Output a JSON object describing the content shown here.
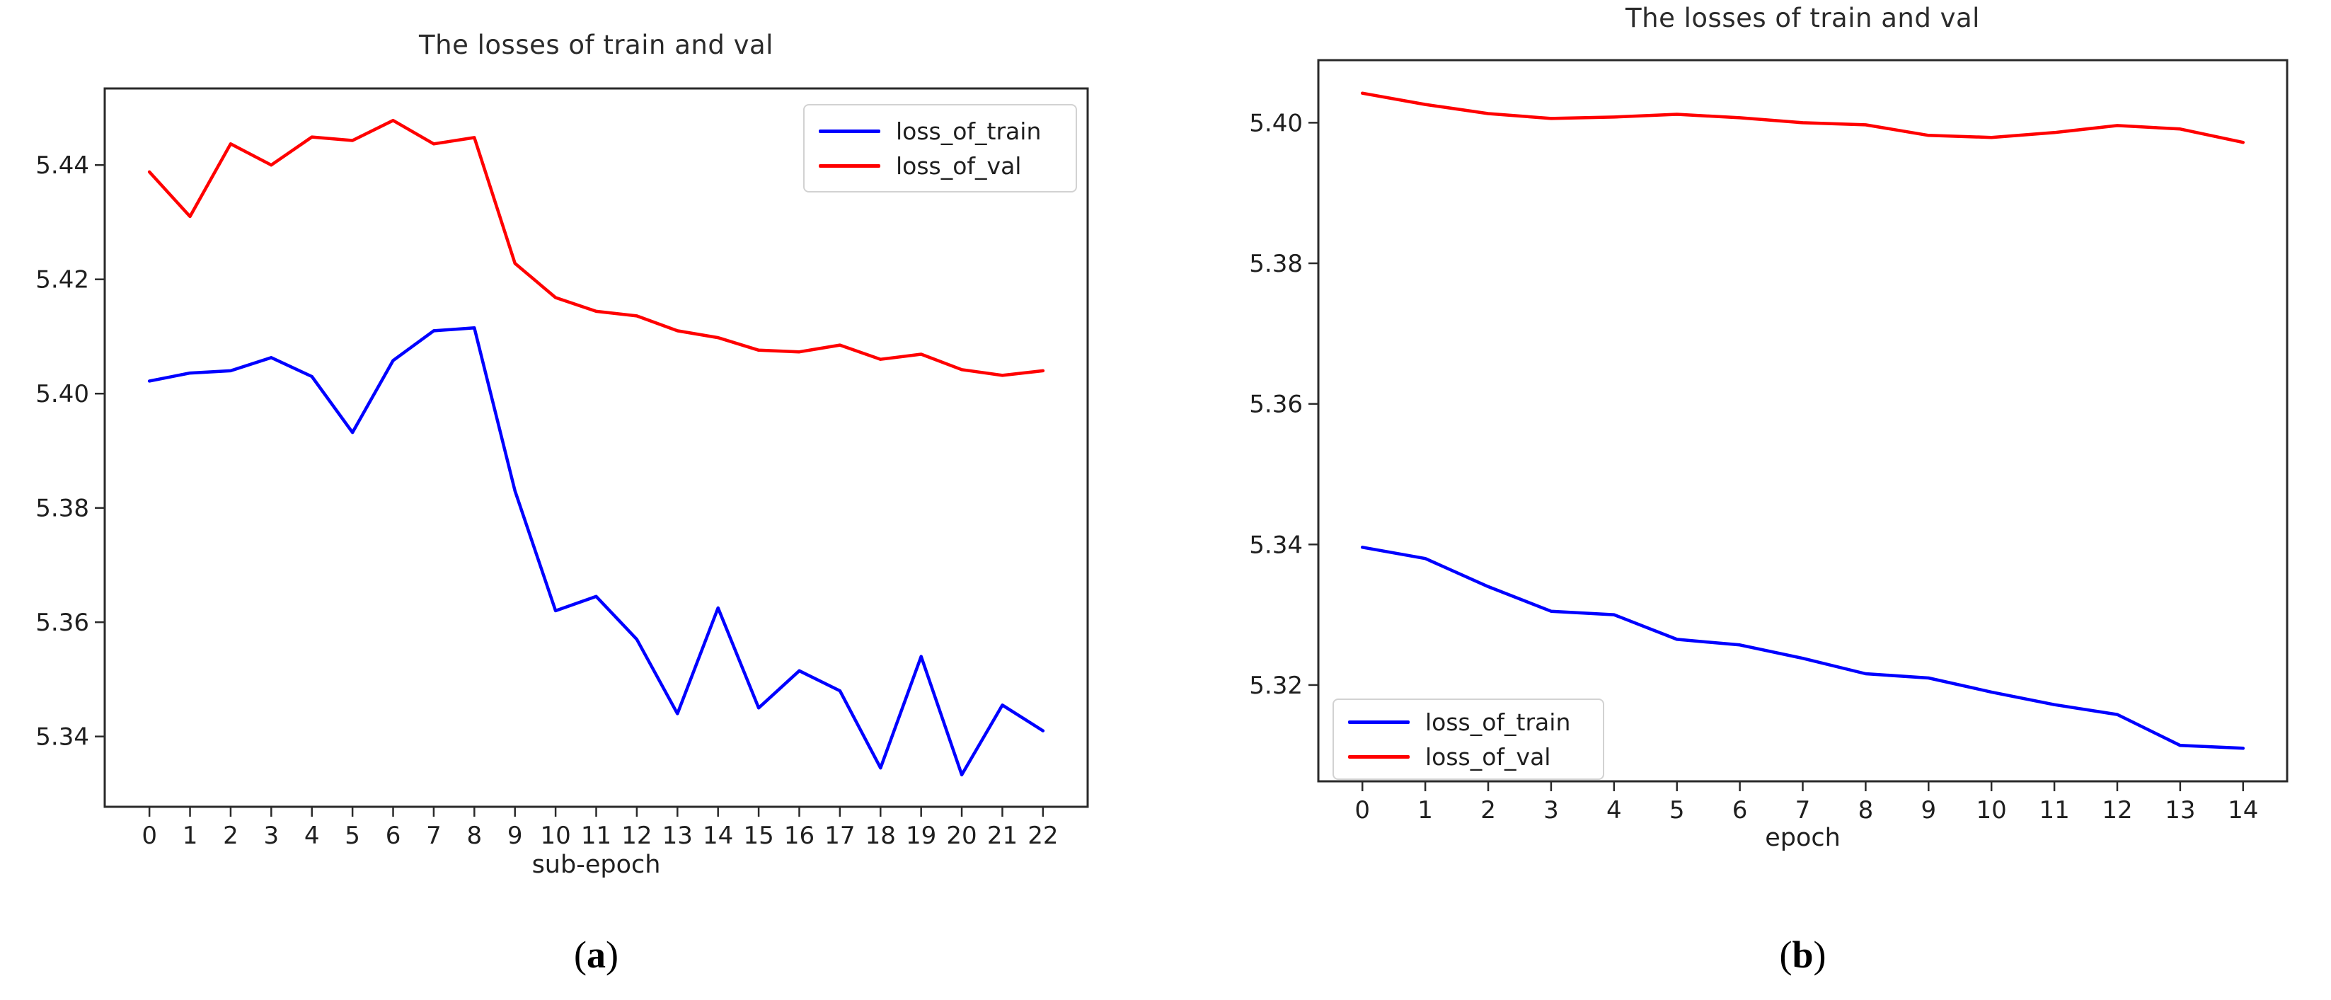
{
  "figure": {
    "background": "#ffffff",
    "captions": {
      "a": {
        "open": "(",
        "letter": "a",
        "close": ")"
      },
      "b": {
        "open": "(",
        "letter": "b",
        "close": ")"
      }
    }
  },
  "colors": {
    "train_line": "#0000ff",
    "val_line": "#ff0000",
    "axis": "#2a2a2a",
    "tick_text": "#1f1f1f",
    "title_text": "#2b2b2b",
    "legend_border": "#d2d2d2"
  },
  "chart_data": [
    {
      "id": "a",
      "type": "line",
      "title": "The losses of train and val",
      "xlabel": "sub-epoch",
      "ylabel": "",
      "grid": false,
      "legend_position": "upper right",
      "xlim": [
        -1.1,
        23.1
      ],
      "ylim": [
        5.3277,
        5.4534
      ],
      "xticks": [
        0,
        1,
        2,
        3,
        4,
        5,
        6,
        7,
        8,
        9,
        10,
        11,
        12,
        13,
        14,
        15,
        16,
        17,
        18,
        19,
        20,
        21,
        22
      ],
      "yticks": [
        5.34,
        5.36,
        5.38,
        5.4,
        5.42,
        5.44
      ],
      "x": [
        0,
        1,
        2,
        3,
        4,
        5,
        6,
        7,
        8,
        9,
        10,
        11,
        12,
        13,
        14,
        15,
        16,
        17,
        18,
        19,
        20,
        21,
        22
      ],
      "series": [
        {
          "name": "loss_of_train",
          "color": "#0000ff",
          "values": [
            5.4022,
            5.4036,
            5.404,
            5.4063,
            5.403,
            5.3932,
            5.4058,
            5.411,
            5.4115,
            5.383,
            5.362,
            5.3645,
            5.357,
            5.344,
            5.3625,
            5.345,
            5.3515,
            5.348,
            5.3345,
            5.354,
            5.3333,
            5.3455,
            5.341
          ]
        },
        {
          "name": "loss_of_val",
          "color": "#ff0000",
          "values": [
            5.4388,
            5.431,
            5.4437,
            5.44,
            5.4449,
            5.4443,
            5.4478,
            5.4437,
            5.4448,
            5.4228,
            5.4168,
            5.4144,
            5.4136,
            5.411,
            5.4098,
            5.4076,
            5.4073,
            5.4085,
            5.406,
            5.4069,
            5.4042,
            5.4032,
            5.404
          ]
        }
      ]
    },
    {
      "id": "b",
      "type": "line",
      "title": "The losses of train and val",
      "xlabel": "epoch",
      "ylabel": "",
      "grid": false,
      "legend_position": "lower left",
      "xlim": [
        -0.7,
        14.7
      ],
      "ylim": [
        5.3063,
        5.4089
      ],
      "xticks": [
        0,
        1,
        2,
        3,
        4,
        5,
        6,
        7,
        8,
        9,
        10,
        11,
        12,
        13,
        14
      ],
      "yticks": [
        5.32,
        5.34,
        5.36,
        5.38,
        5.4
      ],
      "x": [
        0,
        1,
        2,
        3,
        4,
        5,
        6,
        7,
        8,
        9,
        10,
        11,
        12,
        13,
        14
      ],
      "series": [
        {
          "name": "loss_of_train",
          "color": "#0000ff",
          "values": [
            5.3396,
            5.338,
            5.334,
            5.3305,
            5.33,
            5.3265,
            5.3257,
            5.3238,
            5.3216,
            5.321,
            5.319,
            5.3172,
            5.3158,
            5.3114,
            5.311
          ]
        },
        {
          "name": "loss_of_val",
          "color": "#ff0000",
          "values": [
            5.4042,
            5.4026,
            5.4013,
            5.4006,
            5.4008,
            5.4012,
            5.4007,
            5.4,
            5.3997,
            5.3982,
            5.3979,
            5.3986,
            5.3996,
            5.3991,
            5.3972
          ]
        }
      ]
    }
  ]
}
